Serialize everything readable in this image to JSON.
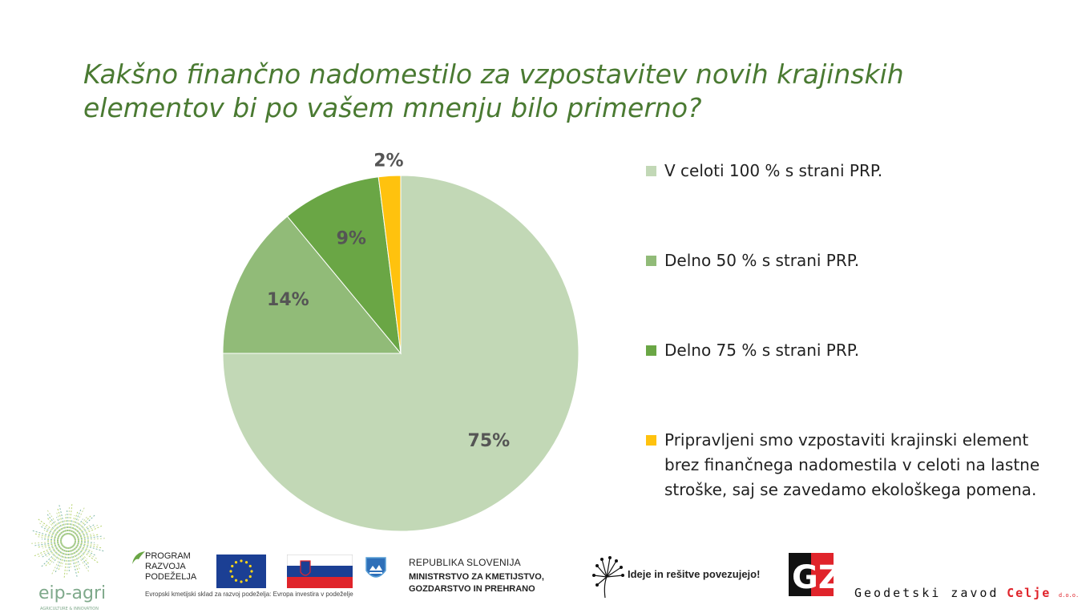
{
  "title": "Kakšno finančno nadomestilo za vzpostavitev novih krajinskih elementov bi po vašem mnenju bilo primerno?",
  "chart_data": {
    "type": "pie",
    "title": "",
    "slices": [
      {
        "label": "V celoti 100 % s strani PRP.",
        "value": 75,
        "display": "75%",
        "color": "#c2d8b6"
      },
      {
        "label": "Delno 50 % s strani PRP.",
        "value": 14,
        "display": "14%",
        "color": "#91bb78"
      },
      {
        "label": "Delno 75 % s strani PRP.",
        "value": 9,
        "display": "9%",
        "color": "#6aa645"
      },
      {
        "label": "Pripravljeni smo vzpostaviti krajinski element brez finančnega nadomestila v celoti na lastne stroške, saj se zavedamo ekološkega pomena.",
        "value": 2,
        "display": "2%",
        "color": "#ffc20e"
      }
    ],
    "legend_position": "right"
  },
  "footer": {
    "eip_agri": "eip-agri",
    "eip_agri_sub": "AGRICULTURE & INNOVATION",
    "program_line1": "PROGRAM",
    "program_line2": "RAZVOJA",
    "program_line3": "PODEŽELJA",
    "program_caption": "Evropski kmetijski sklad za razvoj podeželja: Evropa investira v podeželje",
    "republika": "REPUBLIKA SLOVENIJA",
    "ministrstvo_line1": "MINISTRSTVO ZA KMETIJSTVO,",
    "ministrstvo_line2": "GOZDARSTVO IN PREHRANO",
    "slogan": "Ideje in rešitve povezujejo!",
    "gz_letters": "GZ",
    "geodetski": "Geodetski zavod",
    "celje": "Celje",
    "doo": "d.o.o."
  }
}
